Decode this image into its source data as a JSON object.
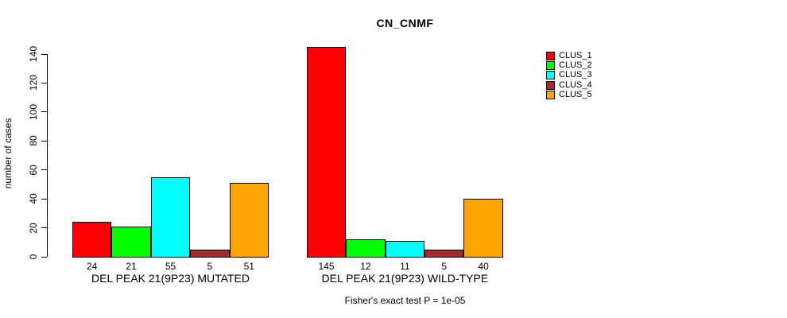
{
  "page": {
    "background": "#FFFFFF"
  },
  "chart_data": {
    "type": "bar",
    "title": "CN_CNMF",
    "ylabel": "number of cases",
    "xlabel": "",
    "ylim": [
      0,
      140
    ],
    "yticks": [
      0,
      20,
      40,
      60,
      80,
      100,
      120,
      140
    ],
    "grid": false,
    "legend_position": "top-right",
    "legend": [
      {
        "label": "CLUS_1",
        "color": "#FF0000"
      },
      {
        "label": "CLUS_2",
        "color": "#00FF00"
      },
      {
        "label": "CLUS_3",
        "color": "#00FFFF"
      },
      {
        "label": "CLUS_4",
        "color": "#A52A2A"
      },
      {
        "label": "CLUS_5",
        "color": "#FFA500"
      }
    ],
    "series_colors": [
      "#FF0000",
      "#00FF00",
      "#00FFFF",
      "#A52A2A",
      "#FFA500"
    ],
    "groups": [
      {
        "label": "DEL PEAK 21(9P23) MUTATED",
        "values": [
          24,
          21,
          55,
          5,
          51
        ]
      },
      {
        "label": "DEL PEAK 21(9P23) WILD-TYPE",
        "values": [
          145,
          12,
          11,
          5,
          40
        ]
      }
    ],
    "bar_value_labels_shown": true,
    "footnote": "Fisher's exact test P = 1e-05",
    "axis_color": "#000000",
    "bar_border_color": "#000000"
  }
}
